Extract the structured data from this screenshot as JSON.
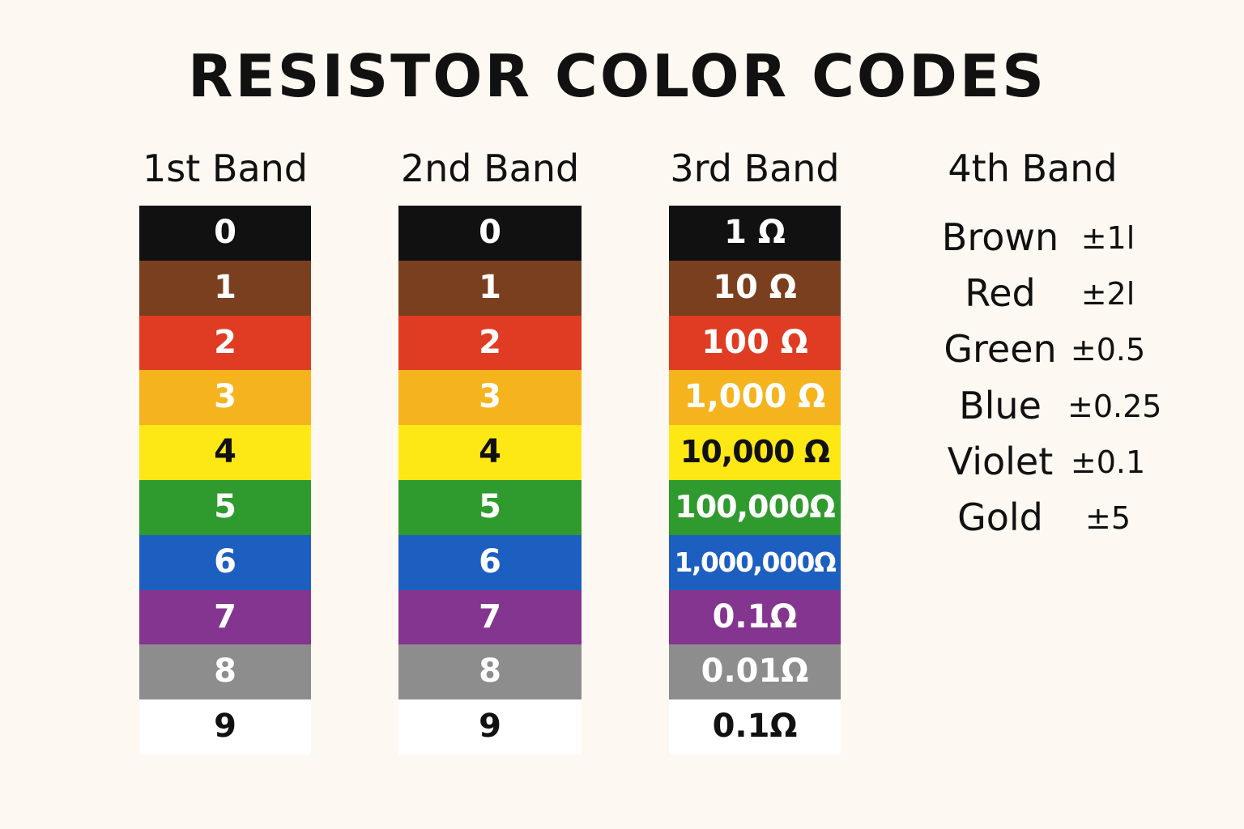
{
  "title": "RESISTOR COLOR CODES",
  "columns": {
    "band1": {
      "header": "1st Band",
      "cells": [
        {
          "label": "0",
          "bg": "#111111",
          "fg": "#ffffff"
        },
        {
          "label": "1",
          "bg": "#7a3f1e",
          "fg": "#ffffff"
        },
        {
          "label": "2",
          "bg": "#e03c23",
          "fg": "#ffffff"
        },
        {
          "label": "3",
          "bg": "#f5b41e",
          "fg": "#ffffff"
        },
        {
          "label": "4",
          "bg": "#fde816",
          "fg": "#111111"
        },
        {
          "label": "5",
          "bg": "#2f9a2e",
          "fg": "#ffffff"
        },
        {
          "label": "6",
          "bg": "#1d5fc1",
          "fg": "#ffffff"
        },
        {
          "label": "7",
          "bg": "#83358f",
          "fg": "#ffffff"
        },
        {
          "label": "8",
          "bg": "#8d8d8d",
          "fg": "#ffffff"
        },
        {
          "label": "9",
          "bg": "#ffffff",
          "fg": "#111111"
        }
      ]
    },
    "band2": {
      "header": "2nd Band",
      "cells": [
        {
          "label": "0",
          "bg": "#111111",
          "fg": "#ffffff"
        },
        {
          "label": "1",
          "bg": "#7a3f1e",
          "fg": "#ffffff"
        },
        {
          "label": "2",
          "bg": "#e03c23",
          "fg": "#ffffff"
        },
        {
          "label": "3",
          "bg": "#f5b41e",
          "fg": "#ffffff"
        },
        {
          "label": "4",
          "bg": "#fde816",
          "fg": "#111111"
        },
        {
          "label": "5",
          "bg": "#2f9a2e",
          "fg": "#ffffff"
        },
        {
          "label": "6",
          "bg": "#1d5fc1",
          "fg": "#ffffff"
        },
        {
          "label": "7",
          "bg": "#83358f",
          "fg": "#ffffff"
        },
        {
          "label": "8",
          "bg": "#8d8d8d",
          "fg": "#ffffff"
        },
        {
          "label": "9",
          "bg": "#ffffff",
          "fg": "#111111"
        }
      ]
    },
    "band3": {
      "header": "3rd Band",
      "cells": [
        {
          "label": "1 Ω",
          "bg": "#111111",
          "fg": "#ffffff"
        },
        {
          "label": "10 Ω",
          "bg": "#7a3f1e",
          "fg": "#ffffff"
        },
        {
          "label": "100 Ω",
          "bg": "#e03c23",
          "fg": "#ffffff"
        },
        {
          "label": "1,000 Ω",
          "bg": "#f5b41e",
          "fg": "#ffffff"
        },
        {
          "label": "10,000 Ω",
          "bg": "#fde816",
          "fg": "#111111"
        },
        {
          "label": "100,000Ω",
          "bg": "#2f9a2e",
          "fg": "#ffffff"
        },
        {
          "label": "1,000,000Ω",
          "bg": "#1d5fc1",
          "fg": "#ffffff"
        },
        {
          "label": "0.1Ω",
          "bg": "#83358f",
          "fg": "#ffffff"
        },
        {
          "label": "0.01Ω",
          "bg": "#8d8d8d",
          "fg": "#ffffff"
        },
        {
          "label": "0.1Ω",
          "bg": "#ffffff",
          "fg": "#111111"
        }
      ]
    }
  },
  "tolerance": {
    "header": "4th Band",
    "rows": [
      {
        "color": "Brown",
        "value": "±1l"
      },
      {
        "color": "Red",
        "value": "±2l"
      },
      {
        "color": "Green",
        "value": "±0.5"
      },
      {
        "color": "Blue",
        "value": "±0.25"
      },
      {
        "color": "Violet",
        "value": "±0.1"
      },
      {
        "color": "Gold",
        "value": "±5"
      }
    ]
  }
}
